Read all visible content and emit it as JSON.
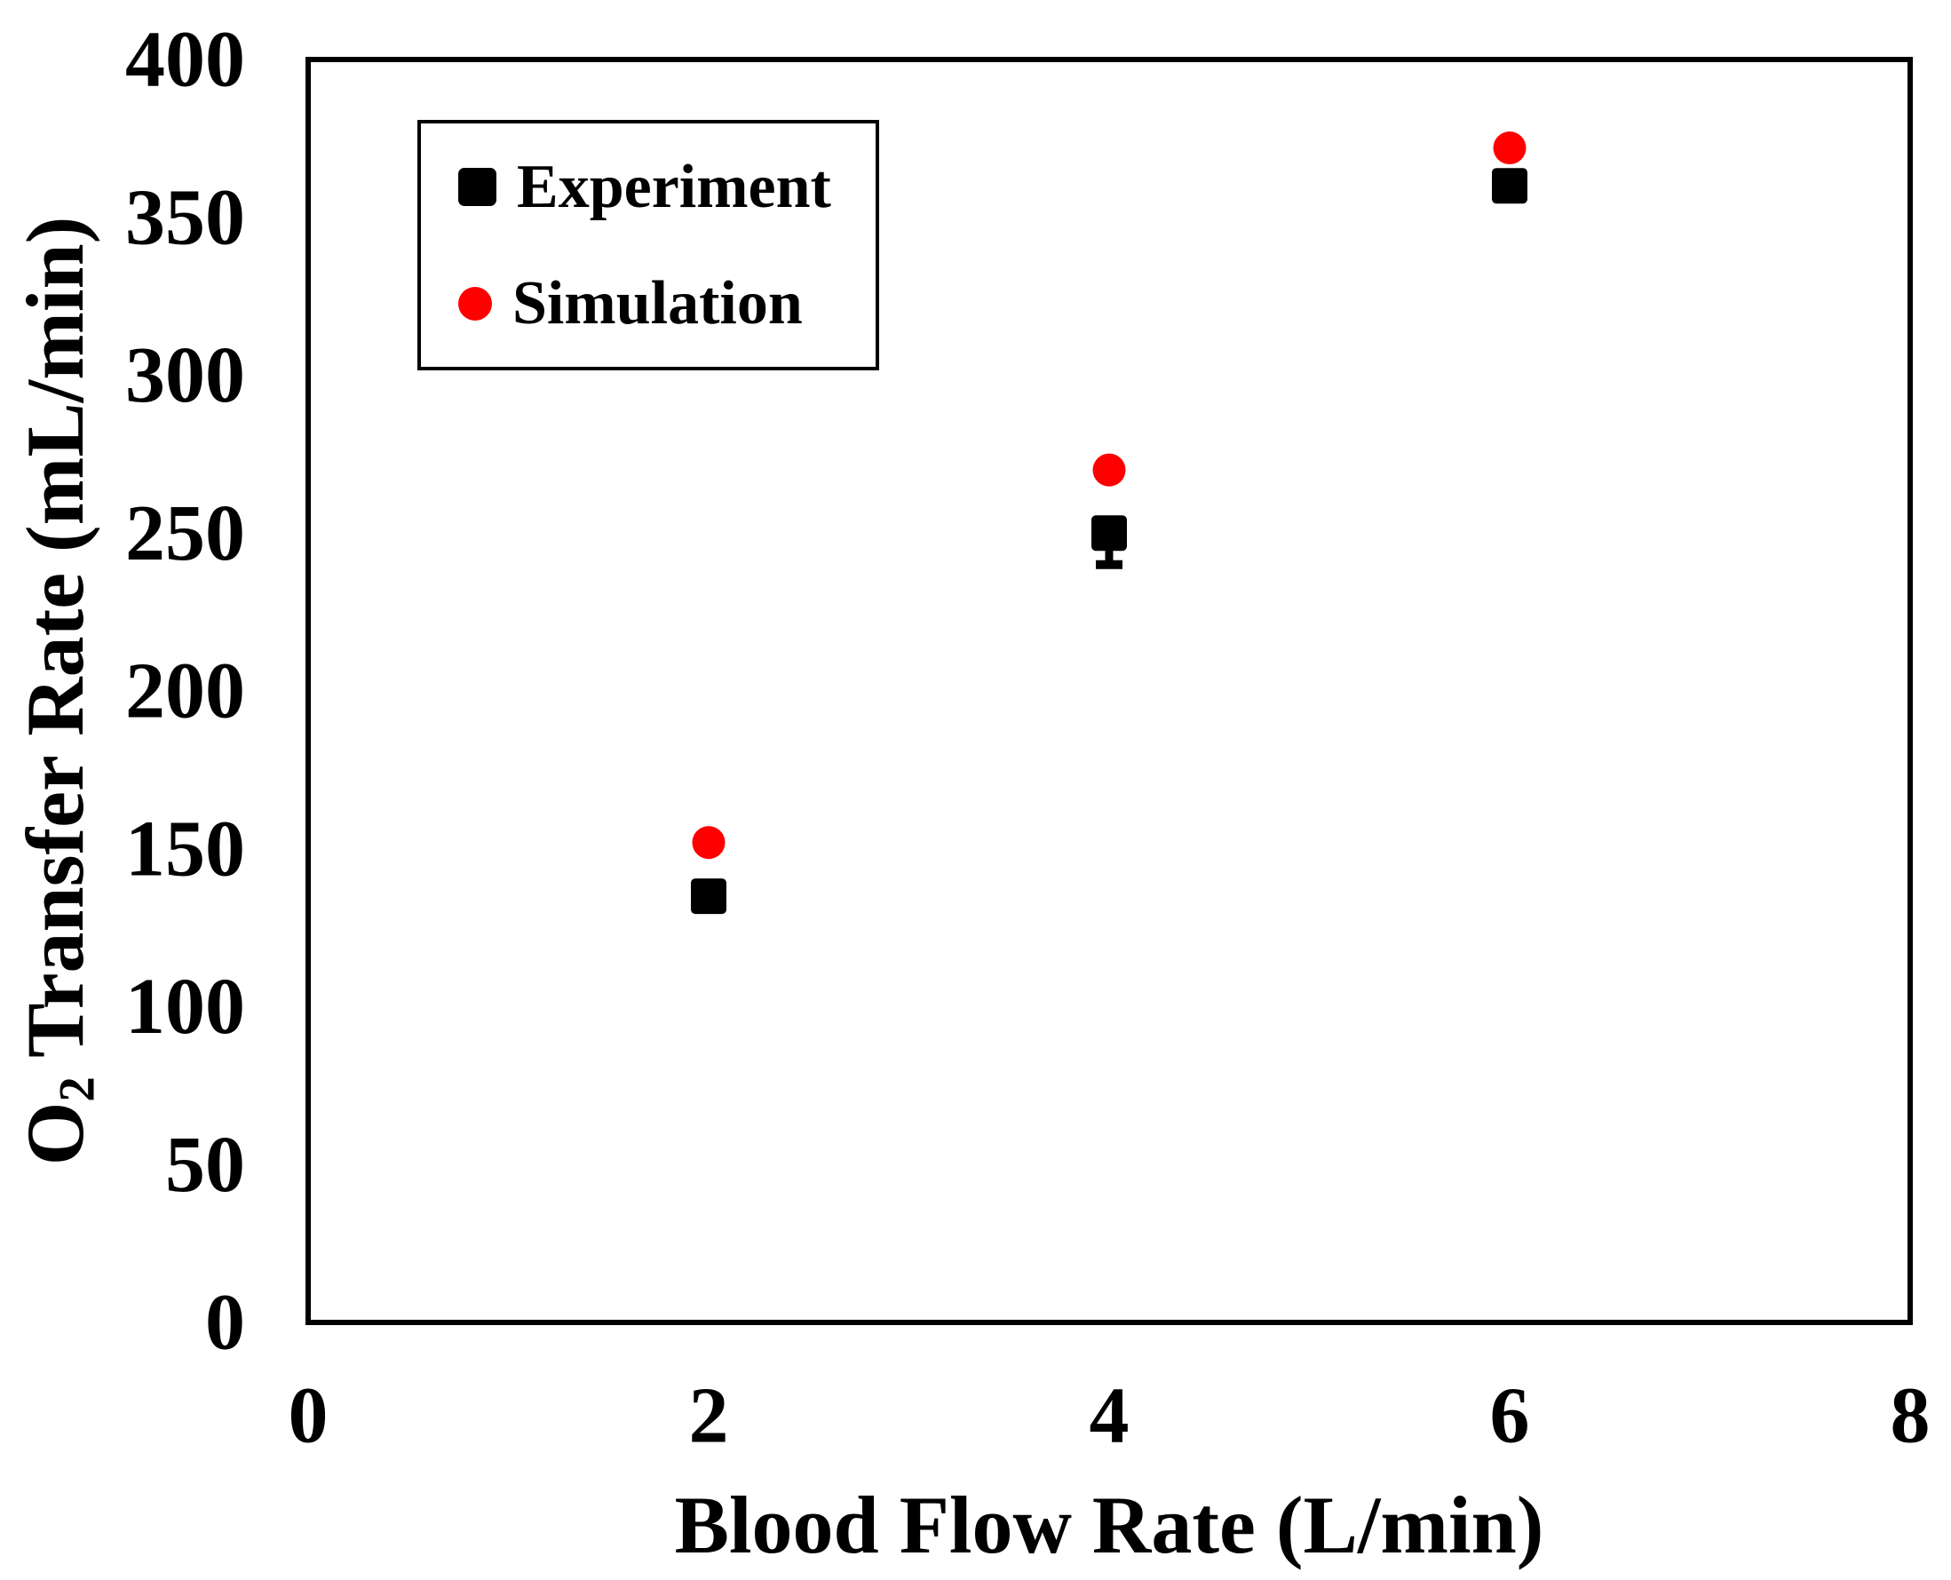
{
  "chart_data": {
    "type": "scatter",
    "title": "",
    "xlabel": "Blood Flow Rate (L/min)",
    "ylabel": "O2 Transfer Rate (mL/min)",
    "ylabel_parts": {
      "prefix": "O",
      "subscript": "2",
      "suffix": " Transfer Rate (mL/min)"
    },
    "xlim": [
      0,
      8
    ],
    "ylim": [
      0,
      400
    ],
    "x_ticks": [
      "0",
      "2",
      "4",
      "6",
      "8"
    ],
    "y_ticks": [
      "0",
      "50",
      "100",
      "150",
      "200",
      "250",
      "300",
      "350",
      "400"
    ],
    "grid": false,
    "legend_position": "top-left-inside",
    "series": [
      {
        "name": "Experiment",
        "marker": "square",
        "color": "#000000",
        "points": [
          {
            "x": 2,
            "y": 135
          },
          {
            "x": 4,
            "y": 250,
            "error_minus": 10
          },
          {
            "x": 6,
            "y": 360
          }
        ]
      },
      {
        "name": "Simulation",
        "marker": "circle",
        "color": "#FF0000",
        "points": [
          {
            "x": 2,
            "y": 152
          },
          {
            "x": 4,
            "y": 270
          },
          {
            "x": 6,
            "y": 372
          }
        ]
      }
    ]
  },
  "colors": {
    "axis": "#000000",
    "background": "#FFFFFF",
    "experiment": "#000000",
    "simulation": "#FF0000"
  }
}
